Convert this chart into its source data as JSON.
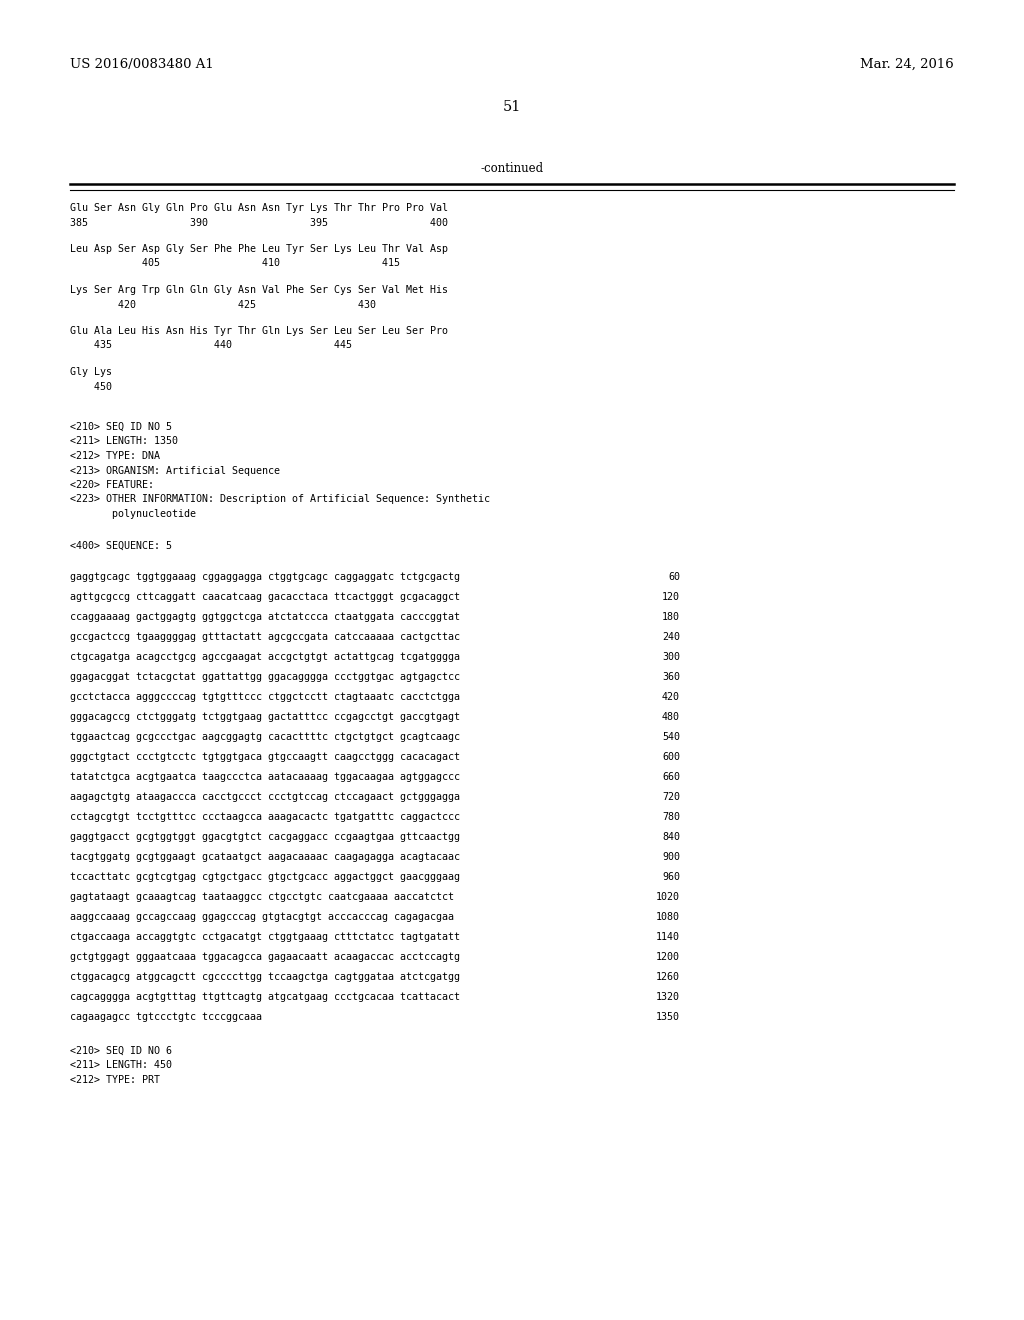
{
  "header_left": "US 2016/0083480 A1",
  "header_right": "Mar. 24, 2016",
  "page_number": "51",
  "continued_label": "-continued",
  "background_color": "#ffffff",
  "text_color": "#000000",
  "font_size_header": 9.5,
  "font_size_page": 10.5,
  "mono_size": 7.2,
  "monospace_font": "DejaVu Sans Mono",
  "serif_font": "DejaVu Serif",
  "seq_blocks": [
    {
      "seq": "Glu Ser Asn Gly Gln Pro Glu Asn Asn Tyr Lys Thr Thr Pro Pro Val",
      "num": "385                 390                 395                 400"
    },
    {
      "seq": "Leu Asp Ser Asp Gly Ser Phe Phe Leu Tyr Ser Lys Leu Thr Val Asp",
      "num": "            405                 410                 415"
    },
    {
      "seq": "Lys Ser Arg Trp Gln Gln Gly Asn Val Phe Ser Cys Ser Val Met His",
      "num": "        420                 425                 430"
    },
    {
      "seq": "Glu Ala Leu His Asn His Tyr Thr Gln Lys Ser Leu Ser Leu Ser Pro",
      "num": "    435                 440                 445"
    },
    {
      "seq": "Gly Lys",
      "num": "    450"
    }
  ],
  "metadata_lines": [
    "<210> SEQ ID NO 5",
    "<211> LENGTH: 1350",
    "<212> TYPE: DNA",
    "<213> ORGANISM: Artificial Sequence",
    "<220> FEATURE:",
    "<223> OTHER INFORMATION: Description of Artificial Sequence: Synthetic",
    "       polynucleotide"
  ],
  "seq400_label": "<400> SEQUENCE: 5",
  "dna_sequences": [
    [
      "gaggtgcagc tggtggaaag cggaggagga ctggtgcagc caggaggatc tctgcgactg",
      "60"
    ],
    [
      "agttgcgccg cttcaggatt caacatcaag gacacctaca ttcactgggt gcgacaggct",
      "120"
    ],
    [
      "ccaggaaaag gactggagtg ggtggctcga atctatccca ctaatggata cacccggtat",
      "180"
    ],
    [
      "gccgactccg tgaaggggag gtttactatt agcgccgata catccaaaaa cactgcttac",
      "240"
    ],
    [
      "ctgcagatga acagcctgcg agccgaagat accgctgtgt actattgcag tcgatgggga",
      "300"
    ],
    [
      "ggagacggat tctacgctat ggattattgg ggacagggga ccctggtgac agtgagctcc",
      "360"
    ],
    [
      "gcctctacca agggccccag tgtgtttccc ctggctcctt ctagtaaatc cacctctgga",
      "420"
    ],
    [
      "gggacagccg ctctgggatg tctggtgaag gactatttcc ccgagcctgt gaccgtgagt",
      "480"
    ],
    [
      "tggaactcag gcgccctgac aagcggagtg cacacttttc ctgctgtgct gcagtcaagc",
      "540"
    ],
    [
      "gggctgtact ccctgtcctc tgtggtgaca gtgccaagtt caagcctggg cacacagact",
      "600"
    ],
    [
      "tatatctgca acgtgaatca taagccctca aatacaaaag tggacaagaa agtggagccc",
      "660"
    ],
    [
      "aagagctgtg ataagaccca cacctgccct ccctgtccag ctccagaact gctgggagga",
      "720"
    ],
    [
      "cctagcgtgt tcctgtttcc ccctaagcca aaagacactc tgatgatttc caggactccc",
      "780"
    ],
    [
      "gaggtgacct gcgtggtggt ggacgtgtct cacgaggacc ccgaagtgaa gttcaactgg",
      "840"
    ],
    [
      "tacgtggatg gcgtggaagt gcataatgct aagacaaaac caagagagga acagtacaac",
      "900"
    ],
    [
      "tccacttatc gcgtcgtgag cgtgctgacc gtgctgcacc aggactggct gaacgggaag",
      "960"
    ],
    [
      "gagtataagt gcaaagtcag taataaggcc ctgcctgtc caatcgaaaa aaccatctct",
      "1020"
    ],
    [
      "aaggccaaag gccagccaag ggagcccag gtgtacgtgt acccacccag cagagacgaa",
      "1080"
    ],
    [
      "ctgaccaaga accaggtgtc cctgacatgt ctggtgaaag ctttctatcc tagtgatatt",
      "1140"
    ],
    [
      "gctgtggagt gggaatcaaa tggacagcca gagaacaatt acaagaccac acctccagtg",
      "1200"
    ],
    [
      "ctggacagcg atggcagctt cgccccttgg tccaagctga cagtggataa atctcgatgg",
      "1260"
    ],
    [
      "cagcagggga acgtgtttag ttgttcagtg atgcatgaag ccctgcacaa tcattacact",
      "1320"
    ],
    [
      "cagaagagcc tgtccctgtc tcccggcaaa",
      "1350"
    ]
  ],
  "footer_metadata": [
    "<210> SEQ ID NO 6",
    "<211> LENGTH: 450",
    "<212> TYPE: PRT"
  ]
}
